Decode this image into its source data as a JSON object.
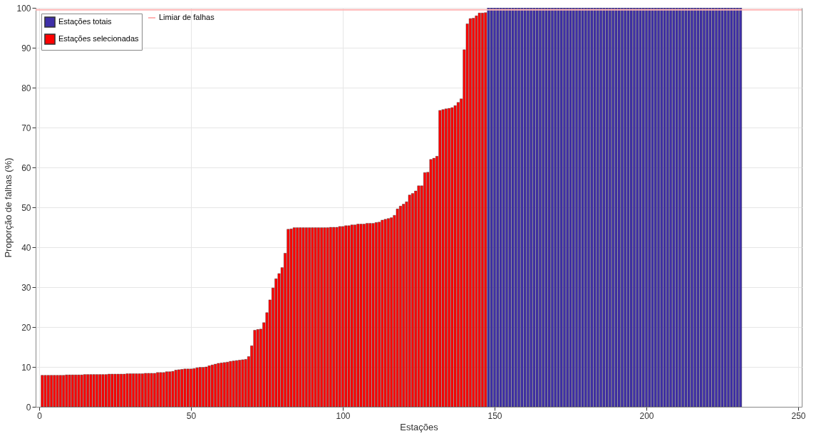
{
  "chart_data": {
    "type": "bar",
    "xlabel": "Estações",
    "ylabel": "Proporção de falhas (%)",
    "xlim": [
      0,
      250
    ],
    "xticks": [
      0,
      50,
      100,
      150,
      200,
      250
    ],
    "ylim": [
      0,
      100
    ],
    "yticks": [
      0,
      10,
      20,
      30,
      40,
      50,
      60,
      70,
      80,
      90,
      100
    ],
    "grid": true,
    "legend": "top left",
    "series": [
      {
        "name": "Estações totais",
        "color": "#3f2fa8",
        "x": [
          148,
          149,
          150,
          151,
          152,
          153,
          154,
          155,
          156,
          157,
          158,
          159,
          160,
          161,
          162,
          163,
          164,
          165,
          166,
          167,
          168,
          169,
          170,
          171,
          172,
          173,
          174,
          175,
          176,
          177,
          178,
          179,
          180,
          181,
          182,
          183,
          184,
          185,
          186,
          187,
          188,
          189,
          190,
          191,
          192,
          193,
          194,
          195,
          196,
          197,
          198,
          199,
          200,
          201,
          202,
          203,
          204,
          205,
          206,
          207,
          208,
          209,
          210,
          211,
          212,
          213,
          214,
          215,
          216,
          217,
          218,
          219,
          220,
          221,
          222,
          223,
          224,
          225,
          226,
          227,
          228,
          229,
          230,
          231
        ],
        "values": [
          100,
          100,
          100,
          100,
          100,
          100,
          100,
          100,
          100,
          100,
          100,
          100,
          100,
          100,
          100,
          100,
          100,
          100,
          100,
          100,
          100,
          100,
          100,
          100,
          100,
          100,
          100,
          100,
          100,
          100,
          100,
          100,
          100,
          100,
          100,
          100,
          100,
          100,
          100,
          100,
          100,
          100,
          100,
          100,
          100,
          100,
          100,
          100,
          100,
          100,
          100,
          100,
          100,
          100,
          100,
          100,
          100,
          100,
          100,
          100,
          100,
          100,
          100,
          100,
          100,
          100,
          100,
          100,
          100,
          100,
          100,
          100,
          100,
          100,
          100,
          100,
          100,
          100,
          100,
          100,
          100,
          100,
          100,
          100
        ]
      },
      {
        "name": "Estações selecionadas",
        "color": "#ff0000",
        "x": [
          1,
          2,
          3,
          4,
          5,
          6,
          7,
          8,
          9,
          10,
          11,
          12,
          13,
          14,
          15,
          16,
          17,
          18,
          19,
          20,
          21,
          22,
          23,
          24,
          25,
          26,
          27,
          28,
          29,
          30,
          31,
          32,
          33,
          34,
          35,
          36,
          37,
          38,
          39,
          40,
          41,
          42,
          43,
          44,
          45,
          46,
          47,
          48,
          49,
          50,
          51,
          52,
          53,
          54,
          55,
          56,
          57,
          58,
          59,
          60,
          61,
          62,
          63,
          64,
          65,
          66,
          67,
          68,
          69,
          70,
          71,
          72,
          73,
          74,
          75,
          76,
          77,
          78,
          79,
          80,
          81,
          82,
          83,
          84,
          85,
          86,
          87,
          88,
          89,
          90,
          91,
          92,
          93,
          94,
          95,
          96,
          97,
          98,
          99,
          100,
          101,
          102,
          103,
          104,
          105,
          106,
          107,
          108,
          109,
          110,
          111,
          112,
          113,
          114,
          115,
          116,
          117,
          118,
          119,
          120,
          121,
          122,
          123,
          124,
          125,
          126,
          127,
          128,
          129,
          130,
          131,
          132,
          133,
          134,
          135,
          136,
          137,
          138,
          139,
          140,
          141,
          142,
          143,
          144,
          145,
          146,
          147
        ],
        "values": [
          7.9,
          7.9,
          7.9,
          7.9,
          7.9,
          7.9,
          7.9,
          7.9,
          8.0,
          8.0,
          8.0,
          8.0,
          8.0,
          8.0,
          8.1,
          8.1,
          8.1,
          8.1,
          8.1,
          8.1,
          8.1,
          8.1,
          8.2,
          8.2,
          8.2,
          8.2,
          8.2,
          8.2,
          8.3,
          8.3,
          8.3,
          8.3,
          8.3,
          8.3,
          8.4,
          8.4,
          8.4,
          8.4,
          8.6,
          8.6,
          8.6,
          8.8,
          8.8,
          8.9,
          9.2,
          9.3,
          9.4,
          9.5,
          9.5,
          9.5,
          9.6,
          9.8,
          9.9,
          9.9,
          10.0,
          10.3,
          10.5,
          10.7,
          10.9,
          11.0,
          11.1,
          11.2,
          11.4,
          11.5,
          11.6,
          11.7,
          11.8,
          11.9,
          12.6,
          15.3,
          19.2,
          19.4,
          19.5,
          21.1,
          23.6,
          26.8,
          29.8,
          32.1,
          33.4,
          34.9,
          38.5,
          44.5,
          44.6,
          44.9,
          44.9,
          44.9,
          44.9,
          44.9,
          44.9,
          44.9,
          44.9,
          44.9,
          44.9,
          44.9,
          44.9,
          45.0,
          45.0,
          45.0,
          45.2,
          45.2,
          45.4,
          45.4,
          45.6,
          45.6,
          45.8,
          45.8,
          45.8,
          46.0,
          46.0,
          46.0,
          46.2,
          46.3,
          46.8,
          47.0,
          47.2,
          47.4,
          48.0,
          49.6,
          50.3,
          50.8,
          51.4,
          53.1,
          53.5,
          54.1,
          55.4,
          55.4,
          58.7,
          58.8,
          62.0,
          62.3,
          62.8,
          74.3,
          74.5,
          74.7,
          74.8,
          75.0,
          75.5,
          76.3,
          77.2,
          89.5,
          96.0,
          97.3,
          97.4,
          98.0,
          98.7,
          98.7,
          98.8
        ]
      }
    ],
    "ref_lines": [
      {
        "axis": "y",
        "value": 99.5,
        "label": "Limiar de falhas",
        "color": "#ffb3b3",
        "line_style": "solid"
      }
    ]
  }
}
